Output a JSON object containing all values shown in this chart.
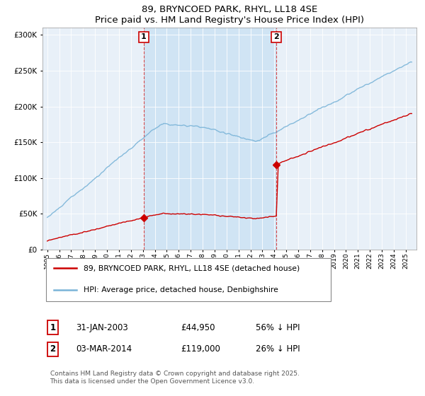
{
  "title": "89, BRYNCOED PARK, RHYL, LL18 4SE",
  "subtitle": "Price paid vs. HM Land Registry's House Price Index (HPI)",
  "legend_line1": "89, BRYNCOED PARK, RHYL, LL18 4SE (detached house)",
  "legend_line2": "HPI: Average price, detached house, Denbighshire",
  "sale1_label": "1",
  "sale1_date": "31-JAN-2003",
  "sale1_price": "£44,950",
  "sale1_hpi": "56% ↓ HPI",
  "sale2_label": "2",
  "sale2_date": "03-MAR-2014",
  "sale2_price": "£119,000",
  "sale2_hpi": "26% ↓ HPI",
  "footer": "Contains HM Land Registry data © Crown copyright and database right 2025.\nThis data is licensed under the Open Government Licence v3.0.",
  "hpi_color": "#7ab4d8",
  "price_color": "#cc0000",
  "vline_color": "#cc0000",
  "background_color": "#ffffff",
  "plot_bg_color": "#e8f0f8",
  "shaded_bg_color": "#d0e4f4",
  "ylim": [
    0,
    310000
  ],
  "yticks": [
    0,
    50000,
    100000,
    150000,
    200000,
    250000,
    300000
  ],
  "sale1_x": 2003.08,
  "sale2_x": 2014.17,
  "sale1_y": 44950,
  "sale2_y": 119000,
  "xmin": 1994.6,
  "xmax": 2025.9
}
